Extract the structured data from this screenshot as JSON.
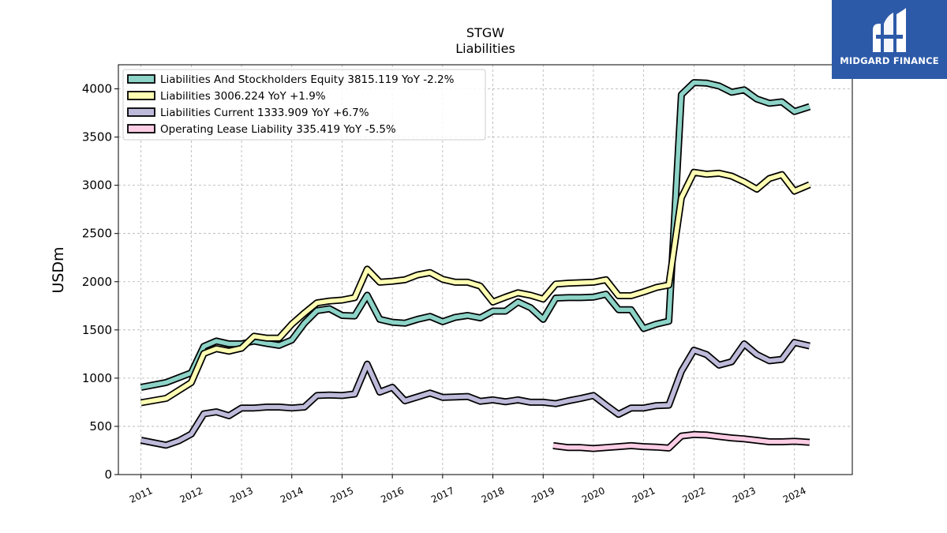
{
  "chart_data": {
    "type": "line",
    "title": "STGW",
    "subtitle": "Liabilities",
    "ylabel": "USDm",
    "xlabel": "",
    "ylim": [
      0,
      4250
    ],
    "xlim": [
      2010.55,
      2025.15
    ],
    "y_ticks": [
      0,
      500,
      1000,
      1500,
      2000,
      2500,
      3000,
      3500,
      4000
    ],
    "x_ticks": [
      2011,
      2012,
      2013,
      2014,
      2015,
      2016,
      2017,
      2018,
      2019,
      2020,
      2021,
      2022,
      2023,
      2024
    ],
    "grid": true,
    "legend_position": "top-left",
    "series": [
      {
        "name": "Liabilities And Stockholders Equity",
        "legend": "Liabilities And Stockholders Equity  3815.119 YoY -2.2%",
        "color": "#8dd3c7",
        "x": [
          2011.0,
          2011.5,
          2012.0,
          2012.25,
          2012.5,
          2012.75,
          2013.0,
          2013.25,
          2013.5,
          2013.75,
          2014.0,
          2014.25,
          2014.5,
          2014.75,
          2015.0,
          2015.25,
          2015.5,
          2015.75,
          2016.0,
          2016.25,
          2016.5,
          2016.75,
          2017.0,
          2017.25,
          2017.5,
          2017.75,
          2018.0,
          2018.25,
          2018.5,
          2018.75,
          2019.0,
          2019.25,
          2019.5,
          2019.75,
          2020.0,
          2020.25,
          2020.5,
          2020.75,
          2021.0,
          2021.25,
          2021.5,
          2021.75,
          2022.0,
          2022.25,
          2022.5,
          2022.75,
          2023.0,
          2023.25,
          2023.5,
          2023.75,
          2024.0,
          2024.3
        ],
        "values": [
          905,
          955,
          1055,
          1330,
          1385,
          1355,
          1355,
          1385,
          1360,
          1340,
          1395,
          1570,
          1700,
          1720,
          1650,
          1645,
          1860,
          1610,
          1580,
          1570,
          1610,
          1640,
          1585,
          1630,
          1650,
          1625,
          1695,
          1695,
          1790,
          1730,
          1610,
          1830,
          1835,
          1835,
          1840,
          1870,
          1710,
          1710,
          1515,
          1560,
          1590,
          3940,
          4065,
          4060,
          4030,
          3965,
          3990,
          3895,
          3850,
          3865,
          3765,
          3815
        ]
      },
      {
        "name": "Liabilities",
        "legend": "Liabilities  3006.224 YoY +1.9%",
        "color": "#ffffb3",
        "x": [
          2011.0,
          2011.5,
          2012.0,
          2012.25,
          2012.5,
          2012.75,
          2013.0,
          2013.25,
          2013.5,
          2013.75,
          2014.0,
          2014.25,
          2014.5,
          2014.75,
          2015.0,
          2015.25,
          2015.5,
          2015.75,
          2016.0,
          2016.25,
          2016.5,
          2016.75,
          2017.0,
          2017.25,
          2017.5,
          2017.75,
          2018.0,
          2018.25,
          2018.5,
          2018.75,
          2019.0,
          2019.25,
          2019.5,
          2019.75,
          2020.0,
          2020.25,
          2020.5,
          2020.75,
          2021.0,
          2021.25,
          2021.5,
          2021.75,
          2022.0,
          2022.25,
          2022.5,
          2022.75,
          2023.0,
          2023.25,
          2023.5,
          2023.75,
          2024.0,
          2024.3
        ],
        "values": [
          745,
          790,
          955,
          1255,
          1305,
          1280,
          1310,
          1435,
          1415,
          1415,
          1560,
          1675,
          1780,
          1800,
          1810,
          1835,
          2130,
          1995,
          2005,
          2020,
          2070,
          2095,
          2025,
          1995,
          1995,
          1955,
          1790,
          1840,
          1885,
          1860,
          1820,
          1975,
          1985,
          1990,
          1995,
          2020,
          1855,
          1855,
          1895,
          1940,
          1965,
          2870,
          3135,
          3115,
          3125,
          3095,
          3035,
          2960,
          3070,
          3110,
          2940,
          3006
        ]
      },
      {
        "name": "Liabilities Current",
        "legend": "Liabilities Current  1333.909 YoY +6.7%",
        "color": "#bebada",
        "x": [
          2011.0,
          2011.5,
          2011.75,
          2012.0,
          2012.25,
          2012.5,
          2012.75,
          2013.0,
          2013.25,
          2013.5,
          2013.75,
          2014.0,
          2014.25,
          2014.5,
          2014.75,
          2015.0,
          2015.25,
          2015.5,
          2015.75,
          2016.0,
          2016.25,
          2016.5,
          2016.75,
          2017.0,
          2017.25,
          2017.5,
          2017.75,
          2018.0,
          2018.25,
          2018.5,
          2018.75,
          2019.0,
          2019.25,
          2019.5,
          2019.75,
          2020.0,
          2020.25,
          2020.5,
          2020.75,
          2021.0,
          2021.25,
          2021.5,
          2021.75,
          2022.0,
          2022.25,
          2022.5,
          2022.75,
          2023.0,
          2023.25,
          2023.5,
          2023.75,
          2024.0,
          2024.3
        ],
        "values": [
          355,
          305,
          350,
          420,
          630,
          650,
          610,
          690,
          690,
          700,
          700,
          690,
          700,
          820,
          825,
          820,
          835,
          1145,
          855,
          905,
          765,
          805,
          845,
          800,
          805,
          810,
          760,
          775,
          755,
          775,
          750,
          750,
          735,
          765,
          790,
          820,
          720,
          625,
          690,
          690,
          715,
          720,
          1070,
          1290,
          1245,
          1135,
          1170,
          1355,
          1245,
          1180,
          1195,
          1370,
          1334
        ]
      },
      {
        "name": "Operating Lease Liability",
        "legend": "Operating Lease Liability  335.419 YoY -5.5%",
        "color": "#fccde5",
        "x": [
          2019.2,
          2019.5,
          2019.75,
          2020.0,
          2020.25,
          2020.5,
          2020.75,
          2021.0,
          2021.25,
          2021.5,
          2021.75,
          2022.0,
          2022.25,
          2022.5,
          2022.75,
          2023.0,
          2023.25,
          2023.5,
          2023.75,
          2024.0,
          2024.3
        ],
        "values": [
          300,
          280,
          280,
          270,
          280,
          290,
          300,
          290,
          285,
          275,
          400,
          415,
          410,
          395,
          380,
          370,
          355,
          340,
          340,
          345,
          335
        ]
      }
    ]
  },
  "logo": {
    "name": "MIDGARD FINANCE",
    "background": "#2d5aa8"
  }
}
